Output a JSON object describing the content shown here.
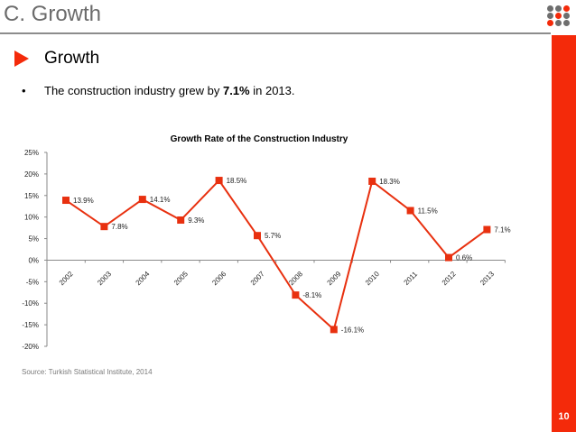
{
  "slide": {
    "title": "C. Growth",
    "section_heading": "Growth",
    "bullet_symbol": "•",
    "bullet": {
      "prefix": "The construction industry grew by ",
      "highlight": "7.1%",
      "suffix": " in 2013."
    },
    "source": "Source: Turkish Statistical Institute, 2014",
    "page_number": "10",
    "logo_icon": "dot-grid-logo",
    "colors": {
      "accent": "#f42a0a",
      "title_gray": "#6b6b6b",
      "logo_gray": "#6e6e6e"
    }
  },
  "chart_data": {
    "type": "line",
    "title": "Growth Rate of the Construction Industry",
    "xlabel": "",
    "ylabel": "",
    "categories": [
      "2002",
      "2003",
      "2004",
      "2005",
      "2006",
      "2007",
      "2008",
      "2009",
      "2010",
      "2011",
      "2012",
      "2013"
    ],
    "series": [
      {
        "name": "Growth Rate",
        "values": [
          13.9,
          7.8,
          14.1,
          9.3,
          18.5,
          5.7,
          -8.1,
          -16.1,
          18.3,
          11.5,
          0.6,
          7.1
        ],
        "labels": [
          "13.9%",
          "7.8%",
          "14.1%",
          "9.3%",
          "18.5%",
          "5.7%",
          "-8.1%",
          "-16.1%",
          "18.3%",
          "11.5%",
          "0.6%",
          "7.1%"
        ],
        "color": "#e8300f",
        "marker": "square"
      }
    ],
    "ylim": [
      -20,
      25
    ],
    "yticks": [
      25,
      20,
      15,
      10,
      5,
      0,
      -5,
      -10,
      -15,
      -20
    ],
    "ytick_labels": [
      "25%",
      "20%",
      "15%",
      "10%",
      "5%",
      "0%",
      "-5%",
      "-10%",
      "-15%",
      "-20%"
    ],
    "grid": false,
    "legend": "none",
    "x_tick_rotation": "-45deg"
  }
}
